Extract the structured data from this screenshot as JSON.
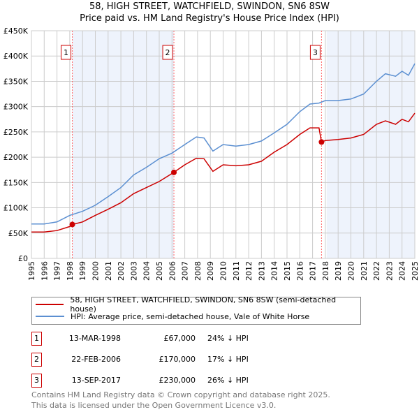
{
  "title_line1": "58, HIGH STREET, WATCHFIELD, SWINDON, SN6 8SW",
  "title_line2": "Price paid vs. HM Land Registry's House Price Index (HPI)",
  "colors": {
    "property": "#cc0000",
    "hpi": "#5b8fd1",
    "shade": "#eef3fc",
    "marker_line": "#ff6666"
  },
  "chart_data": {
    "type": "line",
    "xlim": [
      1995,
      2025
    ],
    "ylim": [
      0,
      450000
    ],
    "yticks": [
      0,
      50000,
      100000,
      150000,
      200000,
      250000,
      300000,
      350000,
      400000,
      450000
    ],
    "ytick_labels": [
      "£0",
      "£50K",
      "£100K",
      "£150K",
      "£200K",
      "£250K",
      "£300K",
      "£350K",
      "£400K",
      "£450K"
    ],
    "xticks": [
      1995,
      1996,
      1997,
      1998,
      1999,
      2000,
      2001,
      2002,
      2003,
      2004,
      2005,
      2006,
      2007,
      2008,
      2009,
      2010,
      2011,
      2012,
      2013,
      2014,
      2015,
      2016,
      2017,
      2018,
      2019,
      2020,
      2021,
      2022,
      2023,
      2024,
      2025
    ],
    "grid": true,
    "shaded_ranges": [
      [
        1998.2,
        2006.15
      ],
      [
        2018.1,
        2025
      ]
    ],
    "series": [
      {
        "name": "58, HIGH STREET, WATCHFIELD, SWINDON, SN6 8SW (semi-detached house)",
        "color": "#cc0000",
        "x": [
          1995,
          1996,
          1997,
          1998,
          1998.2,
          1999,
          2000,
          2001,
          2002,
          2003,
          2004,
          2005,
          2006.15,
          2007,
          2007.9,
          2008.5,
          2009.2,
          2010,
          2011,
          2012,
          2013,
          2014,
          2015,
          2016,
          2016.8,
          2017.5,
          2017.7,
          2018,
          2019,
          2020,
          2021,
          2022,
          2022.7,
          2023.5,
          2024,
          2024.5,
          2025
        ],
        "y": [
          52000,
          52000,
          55000,
          63000,
          67000,
          72000,
          85000,
          97000,
          110000,
          128000,
          140000,
          152000,
          170000,
          185000,
          198000,
          197000,
          172000,
          185000,
          183000,
          185000,
          192000,
          210000,
          225000,
          245000,
          258000,
          258000,
          230000,
          233000,
          235000,
          238000,
          245000,
          265000,
          272000,
          265000,
          275000,
          270000,
          287000
        ]
      },
      {
        "name": "HPI: Average price, semi-detached house, Vale of White Horse",
        "color": "#5b8fd1",
        "x": [
          1995,
          1996,
          1997,
          1998,
          1999,
          2000,
          2001,
          2002,
          2003,
          2004,
          2005,
          2006,
          2007,
          2007.9,
          2008.5,
          2009.2,
          2010,
          2011,
          2012,
          2013,
          2014,
          2015,
          2016,
          2016.8,
          2017.5,
          2018,
          2019,
          2020,
          2021,
          2022,
          2022.7,
          2023.5,
          2024,
          2024.5,
          2025
        ],
        "y": [
          68000,
          68000,
          72000,
          85000,
          93000,
          105000,
          122000,
          140000,
          165000,
          180000,
          197000,
          208000,
          225000,
          240000,
          238000,
          212000,
          225000,
          222000,
          225000,
          232000,
          248000,
          265000,
          290000,
          305000,
          307000,
          312000,
          312000,
          315000,
          325000,
          350000,
          365000,
          360000,
          370000,
          362000,
          385000
        ]
      }
    ],
    "sales": [
      {
        "num": "1",
        "x": 1998.2,
        "y": 67000
      },
      {
        "num": "2",
        "x": 2006.15,
        "y": 170000
      },
      {
        "num": "3",
        "x": 2017.7,
        "y": 230000
      }
    ]
  },
  "legend": {
    "property": "58, HIGH STREET, WATCHFIELD, SWINDON, SN6 8SW (semi-detached house)",
    "hpi": "HPI: Average price, semi-detached house, Vale of White Horse"
  },
  "transactions": [
    {
      "num": "1",
      "date": "13-MAR-1998",
      "price": "£67,000",
      "hpi": "24% ↓ HPI"
    },
    {
      "num": "2",
      "date": "22-FEB-2006",
      "price": "£170,000",
      "hpi": "17% ↓ HPI"
    },
    {
      "num": "3",
      "date": "13-SEP-2017",
      "price": "£230,000",
      "hpi": "26% ↓ HPI"
    }
  ],
  "footer_line1": "Contains HM Land Registry data © Crown copyright and database right 2025.",
  "footer_line2": "This data is licensed under the Open Government Licence v3.0."
}
